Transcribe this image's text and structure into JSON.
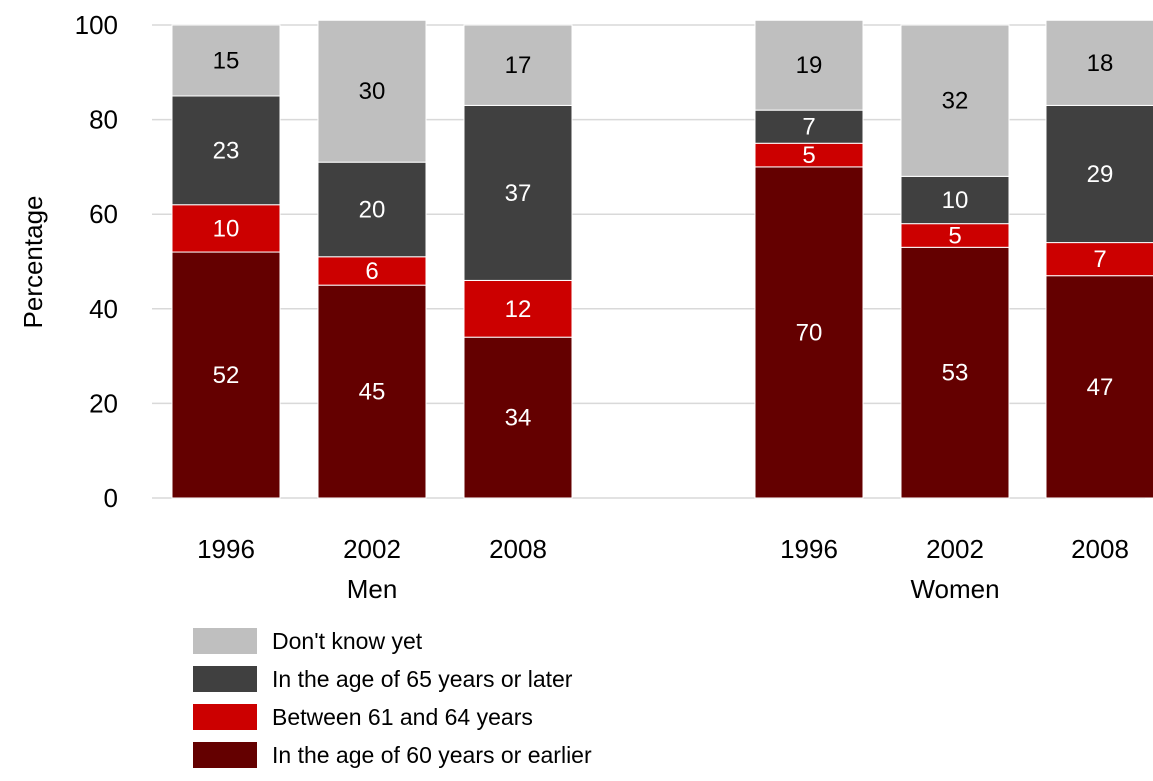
{
  "chart_data": {
    "type": "bar",
    "stacked": true,
    "title": "",
    "xlabel": "",
    "ylabel": "Percentage",
    "ylim": [
      0,
      100
    ],
    "yticks": [
      0,
      20,
      40,
      60,
      80,
      100
    ],
    "grid": true,
    "legend_position": "bottom-left",
    "groups": [
      {
        "name": "Men",
        "categories": [
          "1996",
          "2002",
          "2008"
        ],
        "series": [
          {
            "name": "In the age of 60 years or earlier",
            "values": [
              52,
              45,
              34
            ]
          },
          {
            "name": "Between 61 and 64 years",
            "values": [
              10,
              6,
              12
            ]
          },
          {
            "name": "In the age of 65 years or later",
            "values": [
              23,
              20,
              37
            ]
          },
          {
            "name": "Don't know yet",
            "values": [
              15,
              30,
              17
            ]
          }
        ]
      },
      {
        "name": "Women",
        "categories": [
          "1996",
          "2002",
          "2008"
        ],
        "series": [
          {
            "name": "In the age of 60 years or earlier",
            "values": [
              70,
              53,
              47
            ]
          },
          {
            "name": "Between 61 and 64 years",
            "values": [
              5,
              5,
              7
            ]
          },
          {
            "name": "In the age of 65 years or later",
            "values": [
              7,
              10,
              29
            ]
          },
          {
            "name": "Don't know yet",
            "values": [
              19,
              32,
              18
            ]
          }
        ]
      }
    ],
    "legend": [
      "Don't know yet",
      "In the age of 65 years or later",
      "Between 61 and 64 years",
      "In the age of 60 years or earlier"
    ],
    "colors": {
      "In the age of 60 years or earlier": "#640000",
      "Between 61 and 64 years": "#cc0000",
      "In the age of 65 years or later": "#404040",
      "Don't know yet": "#bfbfbf"
    },
    "label_colors": {
      "In the age of 60 years or earlier": "#ffffff",
      "Between 61 and 64 years": "#ffffff",
      "In the age of 65 years or later": "#ffffff",
      "Don't know yet": "#000000"
    }
  }
}
